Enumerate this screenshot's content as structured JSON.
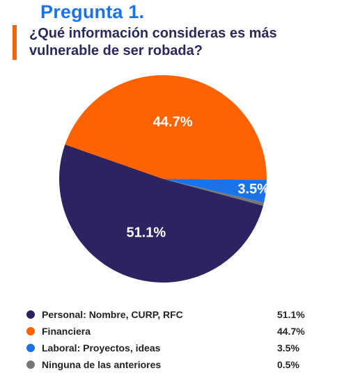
{
  "header": {
    "title": "Pregunta 1.",
    "question_line1": "¿Qué información consideras es más",
    "question_line2": "vulnerable de ser robada?",
    "title_color": "#1a73e8",
    "accent_color": "#ff6200",
    "question_color": "#2a2a5a"
  },
  "chart_data": {
    "type": "pie",
    "title": "",
    "slices": [
      {
        "name": "Personal: Nombre, CURP, RFC",
        "value": 51.1,
        "label": "51.1%",
        "color": "#2b2460"
      },
      {
        "name": "Financiera",
        "value": 44.7,
        "label": "44.7%",
        "color": "#ff6200"
      },
      {
        "name": "Laboral: Proyectos, ideas",
        "value": 3.5,
        "label": "3.5%",
        "color": "#1a73e8"
      },
      {
        "name": "Ninguna de las anteriores",
        "value": 0.5,
        "label": "0.5%",
        "color": "#777777"
      }
    ],
    "slice_labels_shown": [
      "51.1%",
      "44.7%",
      "3.5%"
    ],
    "legend_position": "bottom"
  }
}
